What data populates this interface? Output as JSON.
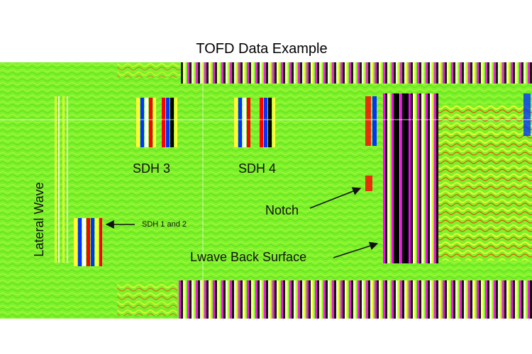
{
  "title": "TOFD Data Example",
  "labels": {
    "lateral_wave": "Lateral Wave",
    "sdh3": "SDH 3",
    "sdh4": "SDH 4",
    "sdh12": "SDH 1 and 2",
    "notch": "Notch",
    "lwave_back_surface": "Lwave Back Surface"
  },
  "colors": {
    "background": "#7cf22a",
    "stripes": [
      "#ff00ff",
      "#000000",
      "#ff0000",
      "#0033ff",
      "#ffff33",
      "#ffffff"
    ]
  }
}
